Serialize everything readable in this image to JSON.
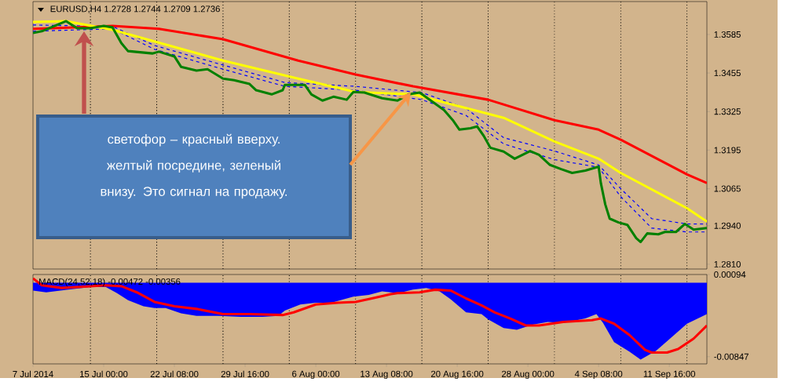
{
  "chart_data": [
    {
      "type": "line",
      "title": "EURUSD,H4  1.2728 1.2744 1.2709 1.2736",
      "annotations": [
        "светофор – красный вверху. желтый посредине, зеленый внизу. Это сигнал на продажу."
      ],
      "xlim": [
        "2014-07-07T16:00",
        "2014-09-15T13:30"
      ],
      "ylim": [
        1.2794,
        1.3696
      ],
      "yticks": [
        1.3585,
        1.3455,
        1.3325,
        1.3195,
        1.3065,
        {
          "value": 1.294,
          "label": "1.2940"
        },
        {
          "value": 1.281,
          "label": "1.2810"
        }
      ],
      "tick_labels": "y",
      "ref_lines": [
        {
          "axis": "x",
          "value": "2014-07-13T15:00",
          "color": "#000000",
          "line_style": "dotted"
        },
        {
          "axis": "x",
          "value": "2014-07-20T12:00",
          "color": "#000000",
          "line_style": "dotted"
        },
        {
          "axis": "x",
          "value": "2014-07-27T09:00",
          "color": "#000000",
          "line_style": "dotted"
        },
        {
          "axis": "x",
          "value": "2014-08-03T06:00",
          "color": "#000000",
          "line_style": "dotted"
        },
        {
          "axis": "x",
          "value": "2014-08-10T03:00",
          "color": "#000000",
          "line_style": "dotted"
        },
        {
          "axis": "x",
          "value": "2014-08-17T00:00",
          "color": "#000000",
          "line_style": "dotted"
        },
        {
          "axis": "x",
          "value": "2014-08-23T21:00",
          "color": "#000000",
          "line_style": "dotted"
        },
        {
          "axis": "x",
          "value": "2014-08-30T18:00",
          "color": "#000000",
          "line_style": "dotted"
        },
        {
          "axis": "x",
          "value": "2014-09-06T15:00",
          "color": "#000000",
          "line_style": "dotted"
        },
        {
          "axis": "x",
          "value": "2014-09-13T12:00",
          "color": "#000000",
          "line_style": "dotted"
        }
      ],
      "series": [
        {
          "color": "#0000ff",
          "line_style": "dashed",
          "x": [
            "2014-07-07T16:00",
            "2014-07-15T22:00",
            "2014-07-20T06:30",
            "2014-07-27T09:00",
            "2014-08-02T19:00",
            "2014-08-10T03:00",
            "2014-08-17T00:00",
            "2014-08-21T14:00",
            "2014-08-25T11:30",
            "2014-08-30T18:00",
            "2014-09-04T08:00",
            "2014-09-06T15:00",
            "2014-09-09T20:00",
            "2014-09-13T12:00",
            "2014-09-15T13:30"
          ],
          "values": [
            1.3617,
            1.3612,
            1.3548,
            1.3482,
            1.3423,
            1.341,
            1.3389,
            1.3336,
            1.3237,
            1.3192,
            1.3145,
            1.3065,
            1.2964,
            1.2946,
            1.2946
          ]
        },
        {
          "color": "#0000ff",
          "line_style": "dashed",
          "x": [
            "2014-07-07T16:00",
            "2014-07-15T22:00",
            "2014-07-20T06:30",
            "2014-07-27T09:00",
            "2014-08-02T19:00",
            "2014-08-10T03:00",
            "2014-08-17T00:00",
            "2014-08-21T14:00",
            "2014-08-25T11:30",
            "2014-08-30T18:00",
            "2014-09-04T08:00",
            "2014-09-06T15:00",
            "2014-09-09T20:00",
            "2014-09-13T12:00",
            "2014-09-15T13:30"
          ],
          "values": [
            1.3596,
            1.3604,
            1.3535,
            1.3468,
            1.341,
            1.3397,
            1.3365,
            1.3312,
            1.3216,
            1.3163,
            1.3137,
            1.3038,
            1.2932,
            1.2919,
            1.2919
          ]
        },
        {
          "color": "#ff0000",
          "x": [
            "2014-07-07T16:00",
            "2014-07-11T08:00",
            "2014-07-15T22:00",
            "2014-07-20T17:30",
            "2014-07-27T09:00",
            "2014-08-04T04:00",
            "2014-08-10T03:00",
            "2014-08-16T02:00",
            "2014-08-23T21:00",
            "2014-08-30T18:00",
            "2014-09-04T08:00",
            "2014-09-06T15:00",
            "2014-09-13T12:00",
            "2014-09-15T13:30"
          ],
          "values": [
            1.3604,
            1.3608,
            1.3614,
            1.3604,
            1.3569,
            1.3497,
            1.345,
            1.341,
            1.3365,
            1.3296,
            1.3264,
            1.323,
            1.3113,
            1.3084
          ]
        },
        {
          "color": "#ffff00",
          "x": [
            "2014-07-07T16:00",
            "2014-07-11T02:30",
            "2014-07-15T22:00",
            "2014-07-27T09:00",
            "2014-08-04T04:00",
            "2014-08-10T03:00",
            "2014-08-16T02:00",
            "2014-08-25T11:30",
            "2014-08-30T18:00",
            "2014-09-04T08:00",
            "2014-09-06T15:00",
            "2014-09-13T12:00",
            "2014-09-15T13:30"
          ],
          "values": [
            1.3627,
            1.363,
            1.3601,
            1.3497,
            1.3436,
            1.3391,
            1.3383,
            1.3304,
            1.3224,
            1.3166,
            1.3118,
            1.2999,
            1.2954
          ]
        },
        {
          "color": "#008000",
          "x": [
            "2014-07-07T16:00",
            "2014-07-08T14:00",
            "2014-07-11T02:30",
            "2014-07-12T06:00",
            "2014-07-13T15:00",
            "2014-07-15T00:00",
            "2014-07-15T22:00",
            "2014-07-16T20:00",
            "2014-07-17T12:30",
            "2014-07-20T01:00",
            "2014-07-20T17:30",
            "2014-07-22T08:00",
            "2014-07-23T00:30",
            "2014-07-24T15:00",
            "2014-07-25T18:30",
            "2014-07-27T09:00",
            "2014-07-28T12:30",
            "2014-07-30T03:00",
            "2014-07-30T19:30",
            "2014-08-01T10:00",
            "2014-08-02T13:30",
            "2014-08-02T19:00",
            "2014-08-04T20:30",
            "2014-08-05T13:00",
            "2014-08-06T16:30",
            "2014-08-07T20:00",
            "2014-08-09T05:00",
            "2014-08-09T21:30",
            "2014-08-11T01:00",
            "2014-08-12T21:00",
            "2014-08-14T11:30",
            "2014-08-15T15:00",
            "2014-08-16T18:30",
            "2014-08-19T07:00",
            "2014-08-20T05:00",
            "2014-08-20T21:30",
            "2014-08-22T01:00",
            "2014-08-22T17:30",
            "2014-08-23T10:00",
            "2014-08-24T02:30",
            "2014-08-25T11:30",
            "2014-08-26T15:00",
            "2014-08-28T05:30",
            "2014-08-29T03:30",
            "2014-08-30T07:00",
            "2014-08-31T10:30",
            "2014-09-01T14:00",
            "2014-09-02T23:00",
            "2014-09-04T08:00",
            "2014-09-04T13:30",
            "2014-09-05T00:30",
            "2014-09-05T11:30",
            "2014-09-06T09:30",
            "2014-09-07T07:30",
            "2014-09-08T05:30",
            "2014-09-08T16:30",
            "2014-09-09T09:00",
            "2014-09-10T12:30",
            "2014-09-11T05:00",
            "2014-09-12T08:30",
            "2014-09-13T06:30",
            "2014-09-14T04:30",
            "2014-09-15T13:30"
          ],
          "values": [
            1.359,
            1.3596,
            1.363,
            1.3606,
            1.3606,
            1.3614,
            1.3609,
            1.3556,
            1.3529,
            1.3521,
            1.3527,
            1.3511,
            1.3476,
            1.3463,
            1.3468,
            1.3436,
            1.3431,
            1.3418,
            1.3397,
            1.3383,
            1.3397,
            1.3415,
            1.3415,
            1.3383,
            1.3362,
            1.3375,
            1.3365,
            1.3391,
            1.3389,
            1.337,
            1.3362,
            1.3383,
            1.3389,
            1.333,
            1.3296,
            1.3264,
            1.3269,
            1.3275,
            1.3243,
            1.3203,
            1.319,
            1.3166,
            1.3192,
            1.3179,
            1.3145,
            1.3131,
            1.3118,
            1.3126,
            1.3139,
            1.3084,
            1.3012,
            1.2964,
            1.2951,
            1.2943,
            1.2898,
            1.2885,
            1.2914,
            1.2911,
            1.2919,
            1.2919,
            1.2946,
            1.2927,
            1.2932
          ]
        }
      ]
    },
    {
      "type": "line",
      "title": "MACD(24,52,18) -0.00472 -0.00356",
      "xlim": [
        "2014-07-07T16:00",
        "2014-09-15T13:30"
      ],
      "xticks": [
        {
          "value": "2014-07-07T16:00",
          "label": "7 Jul 2014"
        },
        {
          "value": "2014-07-15T00:00",
          "label": "15 Jul 00:00"
        },
        {
          "value": "2014-07-22T08:00",
          "label": "22 Jul 08:00"
        },
        {
          "value": "2014-07-29T16:00",
          "label": "29 Jul 16:00"
        },
        {
          "value": "2014-08-06T00:00",
          "label": "6 Aug 00:00"
        },
        {
          "value": "2014-08-13T08:00",
          "label": "13 Aug 08:00"
        },
        {
          "value": "2014-08-20T16:00",
          "label": "20 Aug 16:00"
        },
        {
          "value": "2014-08-28T00:00",
          "label": "28 Aug 00:00"
        },
        {
          "value": "2014-09-04T08:00",
          "label": "4 Sep 08:00"
        },
        {
          "value": "2014-09-11T16:00",
          "label": "11 Sep 16:00"
        }
      ],
      "ylim": [
        -0.0093,
        0.00094
      ],
      "yticks": [
        0.00094,
        -0.00847
      ],
      "ref_lines": [
        {
          "axis": "x",
          "value": "2014-07-13T15:00",
          "color": "#000000",
          "line_style": "dotted"
        },
        {
          "axis": "x",
          "value": "2014-07-20T12:00",
          "color": "#000000",
          "line_style": "dotted"
        },
        {
          "axis": "x",
          "value": "2014-07-27T09:00",
          "color": "#000000",
          "line_style": "dotted"
        },
        {
          "axis": "x",
          "value": "2014-08-03T06:00",
          "color": "#000000",
          "line_style": "dotted"
        },
        {
          "axis": "x",
          "value": "2014-08-10T03:00",
          "color": "#000000",
          "line_style": "dotted"
        },
        {
          "axis": "x",
          "value": "2014-08-17T00:00",
          "color": "#000000",
          "line_style": "dotted"
        },
        {
          "axis": "x",
          "value": "2014-08-23T21:00",
          "color": "#000000",
          "line_style": "dotted"
        },
        {
          "axis": "x",
          "value": "2014-08-30T18:00",
          "color": "#000000",
          "line_style": "dotted"
        },
        {
          "axis": "x",
          "value": "2014-09-06T15:00",
          "color": "#000000",
          "line_style": "dotted"
        },
        {
          "axis": "x",
          "value": "2014-09-13T12:00",
          "color": "#000000",
          "line_style": "dotted"
        }
      ],
      "series": [
        {
          "type": "area",
          "color": "#0000ff",
          "x": [
            "2014-07-07T16:00",
            "2014-07-09T01:00",
            "2014-07-11T08:00",
            "2014-07-13T15:00",
            "2014-07-15T05:30",
            "2014-07-16T09:00",
            "2014-07-17T12:30",
            "2014-07-19T03:00",
            "2014-07-20T06:30",
            "2014-07-21T10:00",
            "2014-07-23T00:30",
            "2014-07-24T15:00",
            "2014-07-26T22:00",
            "2014-07-29T05:00",
            "2014-07-31T12:00",
            "2014-08-02T02:30",
            "2014-08-02T19:00",
            "2014-08-04T09:30",
            "2014-08-06T00:00",
            "2014-08-07T14:30",
            "2014-08-09T21:30",
            "2014-08-11T12:00",
            "2014-08-12T21:00",
            "2014-08-14T11:30",
            "2014-08-16T02:00",
            "2014-08-17T11:00",
            "2014-08-18T20:00",
            "2014-08-19T23:30",
            "2014-08-21T14:00",
            "2014-08-23T04:30",
            "2014-08-23T21:00",
            "2014-08-25T11:30",
            "2014-08-26T20:30",
            "2014-08-28T11:00",
            "2014-08-30T01:30",
            "2014-08-31T16:00",
            "2014-09-02T23:00",
            "2014-09-04T02:30",
            "2014-09-04T19:00",
            "2014-09-05T22:30",
            "2014-09-07T13:00",
            "2014-09-08T16:30",
            "2014-09-10T07:00",
            "2014-09-11T10:30",
            "2014-09-13T12:00",
            "2014-09-15T13:30"
          ],
          "values": [
            -0.0009,
            -0.0011,
            -0.0008,
            -0.0005,
            -0.0005,
            -0.0012,
            -0.002,
            -0.0027,
            -0.0029,
            -0.0029,
            -0.0035,
            -0.0038,
            -0.0038,
            -0.0039,
            -0.0039,
            -0.0038,
            -0.0032,
            -0.0025,
            -0.0023,
            -0.0023,
            -0.0016,
            -0.0014,
            -0.001,
            -0.0012,
            -0.0008,
            -0.0006,
            -0.001,
            -0.0019,
            -0.0034,
            -0.0036,
            -0.0042,
            -0.0052,
            -0.0054,
            -0.0048,
            -0.0045,
            -0.0046,
            -0.0041,
            -0.0036,
            -0.0046,
            -0.0068,
            -0.0079,
            -0.0088,
            -0.0078,
            -0.0067,
            -0.0047,
            -0.0036
          ]
        },
        {
          "type": "line",
          "color": "#ff0000",
          "x": [
            "2014-07-07T16:00",
            "2014-07-08T14:00",
            "2014-07-10T15:30",
            "2014-07-13T15:00",
            "2014-07-15T05:30",
            "2014-07-16T20:00",
            "2014-07-18T10:30",
            "2014-07-20T06:30",
            "2014-07-22T08:00",
            "2014-07-24T15:00",
            "2014-07-27T09:00",
            "2014-07-30T03:00",
            "2014-08-02T13:30",
            "2014-08-03T17:00",
            "2014-08-06T00:00",
            "2014-08-08T07:00",
            "2014-08-10T03:00",
            "2014-08-12T04:30",
            "2014-08-13T19:00",
            "2014-08-14T11:30",
            "2014-08-16T18:30",
            "2014-08-18T09:00",
            "2014-08-19T23:30",
            "2014-08-21T14:00",
            "2014-08-23T04:30",
            "2014-08-24T13:30",
            "2014-08-26T04:00",
            "2014-08-27T18:30",
            "2014-08-29T03:30",
            "2014-08-31T16:00",
            "2014-09-03T15:30",
            "2014-09-04T13:30",
            "2014-09-05T22:30",
            "2014-09-07T13:00",
            "2014-09-09T03:30",
            "2014-09-09T20:00",
            "2014-09-11T10:30",
            "2014-09-12T14:00",
            "2014-09-14T04:30",
            "2014-09-15T13:30"
          ],
          "values": [
            0.0005,
            -0.0003,
            -0.0006,
            -0.0004,
            -0.0003,
            -0.0004,
            -0.0011,
            -0.0022,
            -0.0027,
            -0.003,
            -0.0036,
            -0.0036,
            -0.0037,
            -0.0034,
            -0.0025,
            -0.0023,
            -0.0022,
            -0.0017,
            -0.0013,
            -0.0012,
            -0.0011,
            -0.0008,
            -0.0009,
            -0.0018,
            -0.0026,
            -0.0034,
            -0.0041,
            -0.0049,
            -0.0049,
            -0.0045,
            -0.0043,
            -0.0041,
            -0.0047,
            -0.006,
            -0.0077,
            -0.008,
            -0.008,
            -0.0076,
            -0.0064,
            -0.0049
          ]
        }
      ]
    }
  ]
}
